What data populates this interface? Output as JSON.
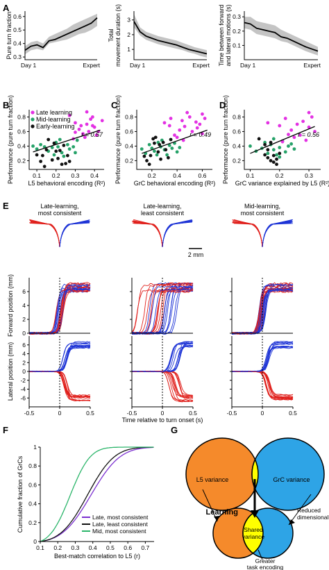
{
  "panels": {
    "A": "A",
    "B": "B",
    "C": "C",
    "D": "D",
    "E": "E",
    "F": "F",
    "G": "G"
  },
  "colors": {
    "late": "#e331e3",
    "mid": "#26a269",
    "early": "#111111",
    "trace_red": "#e0201c",
    "trace_blue": "#1f35d6",
    "late_most": "#7b2fd0",
    "late_least": "#111111",
    "mid_most": "#2bb56a",
    "l5_circle": "#f58a2b",
    "grc_circle": "#2ea4e6",
    "shared": "#ffff00",
    "band": "#c4c4c4"
  },
  "chart_data": [
    {
      "id": "A1",
      "type": "area",
      "ylabel": "Pure turn fraction",
      "x_ticks": [
        "Day 1",
        "Expert"
      ],
      "yticks": [
        "0.3",
        "0.4",
        "0.5",
        "0.6"
      ],
      "ylim": [
        0.28,
        0.64
      ],
      "mean": [
        0.35,
        0.38,
        0.39,
        0.37,
        0.42,
        0.43,
        0.45,
        0.47,
        0.49,
        0.51,
        0.53,
        0.55,
        0.59
      ],
      "lower": [
        0.32,
        0.35,
        0.36,
        0.35,
        0.4,
        0.41,
        0.42,
        0.43,
        0.45,
        0.47,
        0.48,
        0.5,
        0.53
      ],
      "upper": [
        0.38,
        0.41,
        0.42,
        0.4,
        0.45,
        0.47,
        0.49,
        0.51,
        0.54,
        0.56,
        0.58,
        0.6,
        0.62
      ]
    },
    {
      "id": "A2",
      "type": "area",
      "ylabel": [
        "Total",
        "movement duration (s)"
      ],
      "x_ticks": [
        "Day 1",
        "Expert"
      ],
      "yticks": [
        "1",
        "2",
        "3"
      ],
      "ylim": [
        0.3,
        3.6
      ],
      "mean": [
        2.9,
        2.2,
        1.9,
        1.75,
        1.6,
        1.5,
        1.4,
        1.3,
        1.15,
        1.0,
        0.9,
        0.8,
        0.7
      ],
      "lower": [
        2.5,
        1.95,
        1.65,
        1.5,
        1.35,
        1.25,
        1.15,
        1.05,
        0.95,
        0.8,
        0.7,
        0.55,
        0.45
      ],
      "upper": [
        3.4,
        2.5,
        2.2,
        2.05,
        1.9,
        1.8,
        1.7,
        1.6,
        1.45,
        1.3,
        1.15,
        1.05,
        0.95
      ]
    },
    {
      "id": "A3",
      "type": "area",
      "ylabel": [
        "Time between forward",
        "and lateral motions (s)"
      ],
      "x_ticks": [
        "Day 1",
        "Expert"
      ],
      "yticks": [
        "0.1",
        "0.2",
        "0.3"
      ],
      "ylim": [
        0.0,
        0.34
      ],
      "mean": [
        0.26,
        0.25,
        0.22,
        0.21,
        0.2,
        0.19,
        0.16,
        0.15,
        0.13,
        0.11,
        0.09,
        0.075,
        0.06
      ],
      "lower": [
        0.22,
        0.21,
        0.18,
        0.17,
        0.16,
        0.15,
        0.13,
        0.12,
        0.1,
        0.08,
        0.06,
        0.045,
        0.03
      ],
      "upper": [
        0.3,
        0.3,
        0.27,
        0.26,
        0.25,
        0.24,
        0.21,
        0.19,
        0.17,
        0.15,
        0.13,
        0.11,
        0.09
      ]
    },
    {
      "id": "B",
      "type": "scatter",
      "ylabel": "Performance (pure turn fraction)",
      "xlabel": "L5 behavioral encoding (R²)",
      "xticks": [
        "0.1",
        "0.2",
        "0.3",
        "0.4"
      ],
      "xlim": [
        0.06,
        0.45
      ],
      "yticks": [
        "0.2",
        "0.4",
        "0.6",
        "0.8"
      ],
      "ylim": [
        0.08,
        0.9
      ],
      "r_label": "r = 0.57",
      "legend": [
        "Late learning",
        "Mid-learning",
        "Early-learning"
      ],
      "fit": [
        [
          0.08,
          0.32
        ],
        [
          0.43,
          0.62
        ]
      ],
      "late": [
        [
          0.27,
          0.82
        ],
        [
          0.3,
          0.72
        ],
        [
          0.33,
          0.68
        ],
        [
          0.36,
          0.7
        ],
        [
          0.37,
          0.6
        ],
        [
          0.38,
          0.77
        ],
        [
          0.39,
          0.8
        ],
        [
          0.4,
          0.66
        ],
        [
          0.41,
          0.55
        ],
        [
          0.34,
          0.57
        ],
        [
          0.32,
          0.63
        ],
        [
          0.29,
          0.5
        ],
        [
          0.36,
          0.87
        ],
        [
          0.39,
          0.68
        ],
        [
          0.35,
          0.52
        ],
        [
          0.42,
          0.6
        ],
        [
          0.44,
          0.75
        ],
        [
          0.3,
          0.59
        ]
      ],
      "mid": [
        [
          0.08,
          0.4
        ],
        [
          0.1,
          0.36
        ],
        [
          0.12,
          0.42
        ],
        [
          0.14,
          0.39
        ],
        [
          0.16,
          0.33
        ],
        [
          0.19,
          0.28
        ],
        [
          0.21,
          0.39
        ],
        [
          0.22,
          0.49
        ],
        [
          0.23,
          0.31
        ],
        [
          0.24,
          0.26
        ],
        [
          0.26,
          0.42
        ],
        [
          0.27,
          0.36
        ],
        [
          0.29,
          0.39
        ],
        [
          0.31,
          0.48
        ],
        [
          0.3,
          0.31
        ],
        [
          0.2,
          0.45
        ],
        [
          0.18,
          0.38
        ]
      ],
      "early": [
        [
          0.1,
          0.28
        ],
        [
          0.12,
          0.19
        ],
        [
          0.13,
          0.27
        ],
        [
          0.15,
          0.35
        ],
        [
          0.16,
          0.49
        ],
        [
          0.18,
          0.21
        ],
        [
          0.19,
          0.44
        ],
        [
          0.2,
          0.33
        ],
        [
          0.21,
          0.23
        ],
        [
          0.23,
          0.15
        ],
        [
          0.24,
          0.41
        ],
        [
          0.26,
          0.27
        ],
        [
          0.27,
          0.19
        ],
        [
          0.14,
          0.12
        ],
        [
          0.25,
          0.16
        ],
        [
          0.22,
          0.34
        ]
      ]
    },
    {
      "id": "C",
      "type": "scatter",
      "ylabel": "Performance (pure turn fraction)",
      "xlabel": "GrC behavioral encoding (R²)",
      "xticks": [
        "0.2",
        "0.4",
        "0.6"
      ],
      "xlim": [
        0.08,
        0.68
      ],
      "yticks": [
        "0.2",
        "0.4",
        "0.6",
        "0.8"
      ],
      "ylim": [
        0.08,
        0.9
      ],
      "r_label": "r = 0.49",
      "fit": [
        [
          0.12,
          0.3
        ],
        [
          0.64,
          0.62
        ]
      ],
      "late": [
        [
          0.3,
          0.72
        ],
        [
          0.35,
          0.78
        ],
        [
          0.38,
          0.55
        ],
        [
          0.42,
          0.62
        ],
        [
          0.44,
          0.75
        ],
        [
          0.46,
          0.67
        ],
        [
          0.5,
          0.8
        ],
        [
          0.52,
          0.6
        ],
        [
          0.55,
          0.73
        ],
        [
          0.58,
          0.7
        ],
        [
          0.6,
          0.57
        ],
        [
          0.62,
          0.78
        ],
        [
          0.45,
          0.48
        ],
        [
          0.4,
          0.52
        ],
        [
          0.34,
          0.68
        ],
        [
          0.48,
          0.86
        ],
        [
          0.56,
          0.65
        ],
        [
          0.6,
          0.84
        ]
      ],
      "mid": [
        [
          0.12,
          0.36
        ],
        [
          0.15,
          0.3
        ],
        [
          0.18,
          0.42
        ],
        [
          0.2,
          0.37
        ],
        [
          0.22,
          0.33
        ],
        [
          0.25,
          0.45
        ],
        [
          0.27,
          0.39
        ],
        [
          0.3,
          0.35
        ],
        [
          0.32,
          0.28
        ],
        [
          0.34,
          0.41
        ],
        [
          0.36,
          0.37
        ],
        [
          0.38,
          0.44
        ],
        [
          0.42,
          0.38
        ],
        [
          0.24,
          0.28
        ],
        [
          0.28,
          0.48
        ],
        [
          0.4,
          0.32
        ]
      ],
      "early": [
        [
          0.14,
          0.26
        ],
        [
          0.16,
          0.2
        ],
        [
          0.19,
          0.27
        ],
        [
          0.21,
          0.5
        ],
        [
          0.23,
          0.52
        ],
        [
          0.25,
          0.32
        ],
        [
          0.27,
          0.22
        ],
        [
          0.29,
          0.45
        ],
        [
          0.31,
          0.35
        ],
        [
          0.33,
          0.24
        ],
        [
          0.18,
          0.15
        ],
        [
          0.26,
          0.42
        ],
        [
          0.35,
          0.49
        ],
        [
          0.22,
          0.44
        ]
      ]
    },
    {
      "id": "D",
      "type": "scatter",
      "ylabel": "Performance (pure turn fraction)",
      "xlabel": "GrC variance explained by L5 (R²)",
      "xticks": [
        "0.1",
        "0.2",
        "0.3"
      ],
      "xlim": [
        0.08,
        0.34
      ],
      "yticks": [
        "0.2",
        "0.4",
        "0.6",
        "0.8"
      ],
      "ylim": [
        0.08,
        0.9
      ],
      "r_label": "r = 0.56",
      "fit": [
        [
          0.1,
          0.3
        ],
        [
          0.32,
          0.67
        ]
      ],
      "late": [
        [
          0.16,
          0.72
        ],
        [
          0.2,
          0.68
        ],
        [
          0.22,
          0.78
        ],
        [
          0.24,
          0.62
        ],
        [
          0.26,
          0.7
        ],
        [
          0.27,
          0.55
        ],
        [
          0.28,
          0.74
        ],
        [
          0.3,
          0.66
        ],
        [
          0.31,
          0.8
        ],
        [
          0.32,
          0.6
        ],
        [
          0.25,
          0.52
        ],
        [
          0.29,
          0.48
        ],
        [
          0.23,
          0.56
        ],
        [
          0.21,
          0.46
        ],
        [
          0.3,
          0.86
        ]
      ],
      "mid": [
        [
          0.1,
          0.4
        ],
        [
          0.12,
          0.33
        ],
        [
          0.14,
          0.37
        ],
        [
          0.15,
          0.45
        ],
        [
          0.16,
          0.3
        ],
        [
          0.17,
          0.42
        ],
        [
          0.18,
          0.35
        ],
        [
          0.19,
          0.28
        ],
        [
          0.2,
          0.38
        ],
        [
          0.21,
          0.47
        ],
        [
          0.22,
          0.32
        ],
        [
          0.23,
          0.4
        ],
        [
          0.24,
          0.43
        ],
        [
          0.25,
          0.36
        ],
        [
          0.18,
          0.5
        ],
        [
          0.2,
          0.25
        ]
      ],
      "early": [
        [
          0.13,
          0.5
        ],
        [
          0.15,
          0.28
        ],
        [
          0.16,
          0.24
        ],
        [
          0.17,
          0.2
        ],
        [
          0.18,
          0.18
        ],
        [
          0.19,
          0.15
        ],
        [
          0.2,
          0.3
        ],
        [
          0.16,
          0.35
        ],
        [
          0.18,
          0.27
        ],
        [
          0.17,
          0.45
        ],
        [
          0.19,
          0.22
        ],
        [
          0.15,
          0.42
        ]
      ]
    },
    {
      "id": "E",
      "type": "line",
      "titles": [
        [
          "Late-learning,",
          "most consistent"
        ],
        [
          "Late-learning,",
          "least consistent"
        ],
        [
          "Mid-learning,",
          "most consistent"
        ]
      ],
      "scale_bar": "2 mm",
      "ylabel_forward": "Forward position (mm)",
      "ylabel_lateral": "Lateral position (mm)",
      "forward_yticks": [
        "0",
        "2",
        "4",
        "6"
      ],
      "lateral_yticks": [
        "-6",
        "-4",
        "-2",
        "0",
        "2",
        "4",
        "6"
      ],
      "xticks": [
        "-0.5",
        "0",
        "0.5"
      ],
      "xlabel": "Time relative to turn onset (s)",
      "xlim": [
        -0.5,
        0.5
      ],
      "forward_level": 6.6,
      "lateral_level": 6.0,
      "n_traces": 12
    },
    {
      "id": "F",
      "type": "line",
      "ylabel": "Cumulative fraction of GrCs",
      "xlabel": "Best-match correlation to L5 (r)",
      "xticks": [
        "0.1",
        "0.2",
        "0.3",
        "0.4",
        "0.5",
        "0.6",
        "0.7"
      ],
      "xlim": [
        0.1,
        0.75
      ],
      "yticks": [
        "0",
        "0.2",
        "0.4",
        "0.6",
        "0.8",
        "1"
      ],
      "ylim": [
        0,
        1
      ],
      "series": [
        {
          "name": "Late, most consistent",
          "color_key": "late_most",
          "mu": 0.39,
          "sd": 0.13
        },
        {
          "name": "Late, least consistent",
          "color_key": "late_least",
          "mu": 0.37,
          "sd": 0.12
        },
        {
          "name": "Mid, most consistent",
          "color_key": "mid_most",
          "mu": 0.27,
          "sd": 0.09
        }
      ]
    }
  ],
  "venn": {
    "l5_label": "L5 variance",
    "grc_label": "GrC variance",
    "learning_label": "Learning",
    "reduced_label": [
      "Reduced",
      "dimensionality"
    ],
    "shared_label": [
      "Shared",
      "variance"
    ],
    "greater_label": [
      "Greater",
      "task encoding"
    ]
  }
}
